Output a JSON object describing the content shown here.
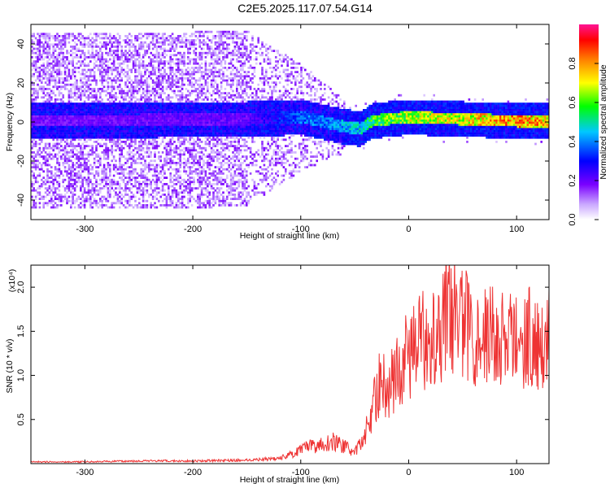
{
  "title": "C2E5.2025.117.07.54.G14",
  "chart_data": [
    {
      "type": "heatmap",
      "title": "C2E5.2025.117.07.54.G14",
      "xlabel": "Height of straight line (km)",
      "ylabel": "Frequency (Hz)",
      "xlim": [
        -350,
        130
      ],
      "ylim": [
        -50,
        50
      ],
      "xticks": [
        -300,
        -200,
        -100,
        0,
        100
      ],
      "yticks": [
        -40,
        -20,
        0,
        20,
        40
      ],
      "colorbar": {
        "label": "Normalized spectral amplitude",
        "range": [
          0,
          1
        ],
        "ticks": [
          "0.0",
          "0.2",
          "0.4",
          "0.6",
          "0.8"
        ],
        "colormap": [
          "#ffffff",
          "#7a00ff",
          "#0000ff",
          "#00c8ff",
          "#00ff00",
          "#ffff00",
          "#ff7f00",
          "#ff0000",
          "#ff1493"
        ]
      },
      "ridge": {
        "description_points_height_km": [
          -350,
          -150,
          -100,
          -60,
          -45,
          -35,
          -20,
          0,
          50,
          100,
          130
        ],
        "frequency_hz": [
          1,
          2,
          3,
          -2,
          -3,
          1,
          2,
          3,
          2,
          1,
          1
        ],
        "amplitude": [
          0.2,
          0.22,
          0.4,
          0.45,
          0.5,
          0.6,
          0.65,
          0.7,
          0.75,
          0.85,
          0.8
        ]
      }
    },
    {
      "type": "line",
      "xlabel": "Height of straight line (km)",
      "ylabel": "SNR (10 * v/v)",
      "yscale_label": "(x10⁴)",
      "xlim": [
        -350,
        130
      ],
      "ylim": [
        0,
        2.25
      ],
      "xticks": [
        -300,
        -200,
        -100,
        0,
        100
      ],
      "yticks": [
        0.5,
        1.0,
        1.5,
        2.0
      ],
      "color": "#ee3333",
      "series": [
        {
          "x": [
            -350,
            -300,
            -250,
            -200,
            -150,
            -120,
            -105,
            -95,
            -80,
            -70,
            -60,
            -50,
            -42,
            -35,
            -30,
            -25,
            -20,
            -15,
            -10,
            -5,
            0,
            10,
            20,
            30,
            35,
            40,
            50,
            60,
            70,
            80,
            90,
            100,
            110,
            120,
            130
          ],
          "values": [
            0.02,
            0.02,
            0.03,
            0.03,
            0.04,
            0.06,
            0.12,
            0.18,
            0.22,
            0.25,
            0.2,
            0.12,
            0.28,
            0.55,
            0.8,
            0.95,
            0.85,
            0.95,
            1.05,
            1.15,
            1.25,
            1.35,
            1.5,
            1.55,
            1.85,
            1.75,
            1.6,
            1.5,
            1.45,
            1.45,
            1.4,
            1.4,
            1.45,
            1.4,
            1.4
          ]
        }
      ]
    }
  ]
}
